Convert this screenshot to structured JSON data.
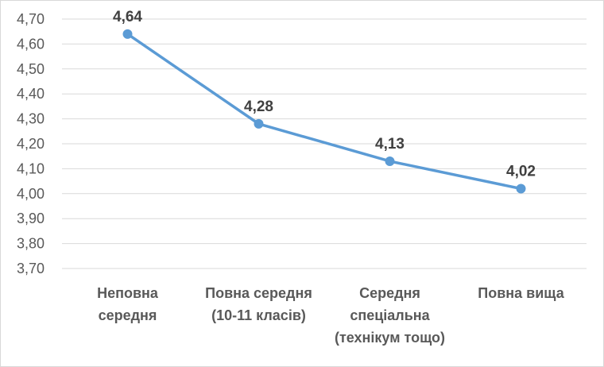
{
  "chart_data": {
    "type": "line",
    "title": "",
    "xlabel": "",
    "ylabel": "",
    "categories": [
      [
        "Неповна",
        "середня"
      ],
      [
        "Повна середня",
        "(10-11 класів)"
      ],
      [
        "Середня",
        "спеціальна",
        "(технікум тощо)"
      ],
      [
        "Повна вища"
      ]
    ],
    "series": [
      {
        "values": [
          4.64,
          4.28,
          4.13,
          4.02
        ],
        "labels": [
          "4,64",
          "4,28",
          "4,13",
          "4,02"
        ]
      }
    ],
    "ylim": [
      3.7,
      4.7
    ],
    "yticks": [
      "3,70",
      "3,80",
      "3,90",
      "4,00",
      "4,10",
      "4,20",
      "4,30",
      "4,40",
      "4,50",
      "4,60",
      "4,70"
    ],
    "grid": true,
    "legend": "none",
    "colors": {
      "line": "#5B9BD5",
      "grid": "#D9D9D9",
      "text": "#595959"
    }
  }
}
